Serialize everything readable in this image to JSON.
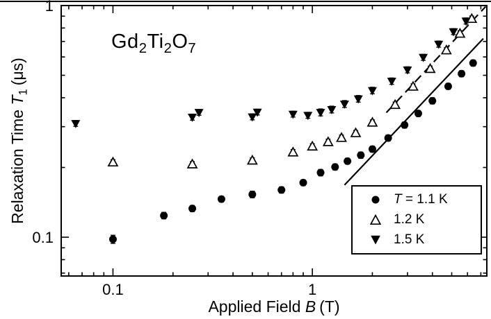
{
  "chart_data": {
    "type": "scatter",
    "scale": {
      "x": "log",
      "y": "log"
    },
    "xlim": [
      0.055,
      7.5
    ],
    "ylim": [
      0.068,
      1.0
    ],
    "x_ticks": {
      "values": [
        0.1,
        1
      ],
      "labels": [
        "0.1",
        "1"
      ]
    },
    "y_ticks": {
      "values": [
        0.1,
        1
      ],
      "labels": [
        "0.1",
        "1"
      ]
    },
    "xlabel": {
      "prefix": "Applied Field ",
      "symbol": "B",
      "suffix": "(T)"
    },
    "ylabel": {
      "prefix": "Relaxation Time ",
      "symbol": "T",
      "subscript": "1",
      "suffix": "(μs)"
    },
    "annotation": {
      "parts": [
        "Gd",
        "2",
        "Ti",
        "2",
        "O",
        "7"
      ]
    },
    "series": [
      {
        "name": "T = 1.1 K",
        "marker": "filled-circle",
        "points": [
          [
            0.1,
            0.098,
            0.004
          ],
          [
            0.18,
            0.124,
            0.004
          ],
          [
            0.25,
            0.133,
            0.004
          ],
          [
            0.35,
            0.146,
            0.004
          ],
          [
            0.5,
            0.153,
            0.005
          ],
          [
            0.7,
            0.16,
            0.005
          ],
          [
            0.9,
            0.172,
            0.005
          ],
          [
            1.1,
            0.19,
            0.006
          ],
          [
            1.3,
            0.201,
            0.006
          ],
          [
            1.5,
            0.213,
            0.006
          ],
          [
            1.75,
            0.226,
            0.007
          ],
          [
            2.0,
            0.24,
            0.007
          ],
          [
            2.4,
            0.268,
            0.008
          ],
          [
            2.9,
            0.305,
            0.009
          ],
          [
            3.4,
            0.342,
            0.01
          ],
          [
            4.0,
            0.388,
            0.012
          ],
          [
            4.8,
            0.448,
            0.013
          ],
          [
            5.6,
            0.508,
            0.015
          ],
          [
            6.4,
            0.565,
            0.017
          ]
        ]
      },
      {
        "name": "1.2 K",
        "marker": "open-triangle-up",
        "points": [
          [
            0.1,
            0.21,
            0.006
          ],
          [
            0.25,
            0.206,
            0.006
          ],
          [
            0.5,
            0.214,
            0.006
          ],
          [
            0.8,
            0.232,
            0.007
          ],
          [
            1.0,
            0.246,
            0.007
          ],
          [
            1.2,
            0.257,
            0.008
          ],
          [
            1.4,
            0.268,
            0.008
          ],
          [
            1.65,
            0.281,
            0.008
          ],
          [
            2.0,
            0.312,
            0.009
          ],
          [
            2.6,
            0.372,
            0.011
          ],
          [
            3.2,
            0.446,
            0.013
          ],
          [
            3.9,
            0.532,
            0.016
          ],
          [
            4.7,
            0.64,
            0.019
          ],
          [
            5.5,
            0.755,
            0.023
          ],
          [
            6.3,
            0.875,
            0.026
          ]
        ]
      },
      {
        "name": "1.5 K",
        "marker": "filled-triangle-down",
        "points": [
          [
            0.065,
            0.31,
            0.009
          ],
          [
            0.25,
            0.33,
            0.01
          ],
          [
            0.27,
            0.346,
            0.01
          ],
          [
            0.5,
            0.331,
            0.01
          ],
          [
            0.53,
            0.347,
            0.01
          ],
          [
            0.8,
            0.34,
            0.01
          ],
          [
            0.95,
            0.336,
            0.01
          ],
          [
            1.1,
            0.346,
            0.012
          ],
          [
            1.25,
            0.356,
            0.012
          ],
          [
            1.45,
            0.376,
            0.013
          ],
          [
            1.7,
            0.396,
            0.013
          ],
          [
            2.0,
            0.43,
            0.014
          ],
          [
            2.5,
            0.472,
            0.015
          ],
          [
            3.0,
            0.528,
            0.016
          ],
          [
            3.6,
            0.598,
            0.018
          ],
          [
            4.3,
            0.682,
            0.021
          ],
          [
            5.1,
            0.772,
            0.023
          ],
          [
            5.9,
            0.858,
            0.026
          ]
        ]
      }
    ],
    "fit_lines": [
      {
        "style": "solid",
        "from": [
          1.45,
          0.168
        ],
        "to": [
          7.2,
          0.72
        ]
      },
      {
        "style": "dashed",
        "from": [
          2.35,
          0.345
        ],
        "to": [
          7.4,
          0.99
        ]
      }
    ],
    "legend": {
      "position": "lower-right",
      "entries": [
        {
          "marker": "filled-circle",
          "symbol": "T",
          "label": " = 1.1 K"
        },
        {
          "marker": "open-triangle-up",
          "symbol": "",
          "label": "1.2 K"
        },
        {
          "marker": "filled-triangle-down",
          "symbol": "",
          "label": "1.5 K"
        }
      ]
    },
    "colors": {
      "foreground": "#000000",
      "background": "#ffffff"
    }
  }
}
